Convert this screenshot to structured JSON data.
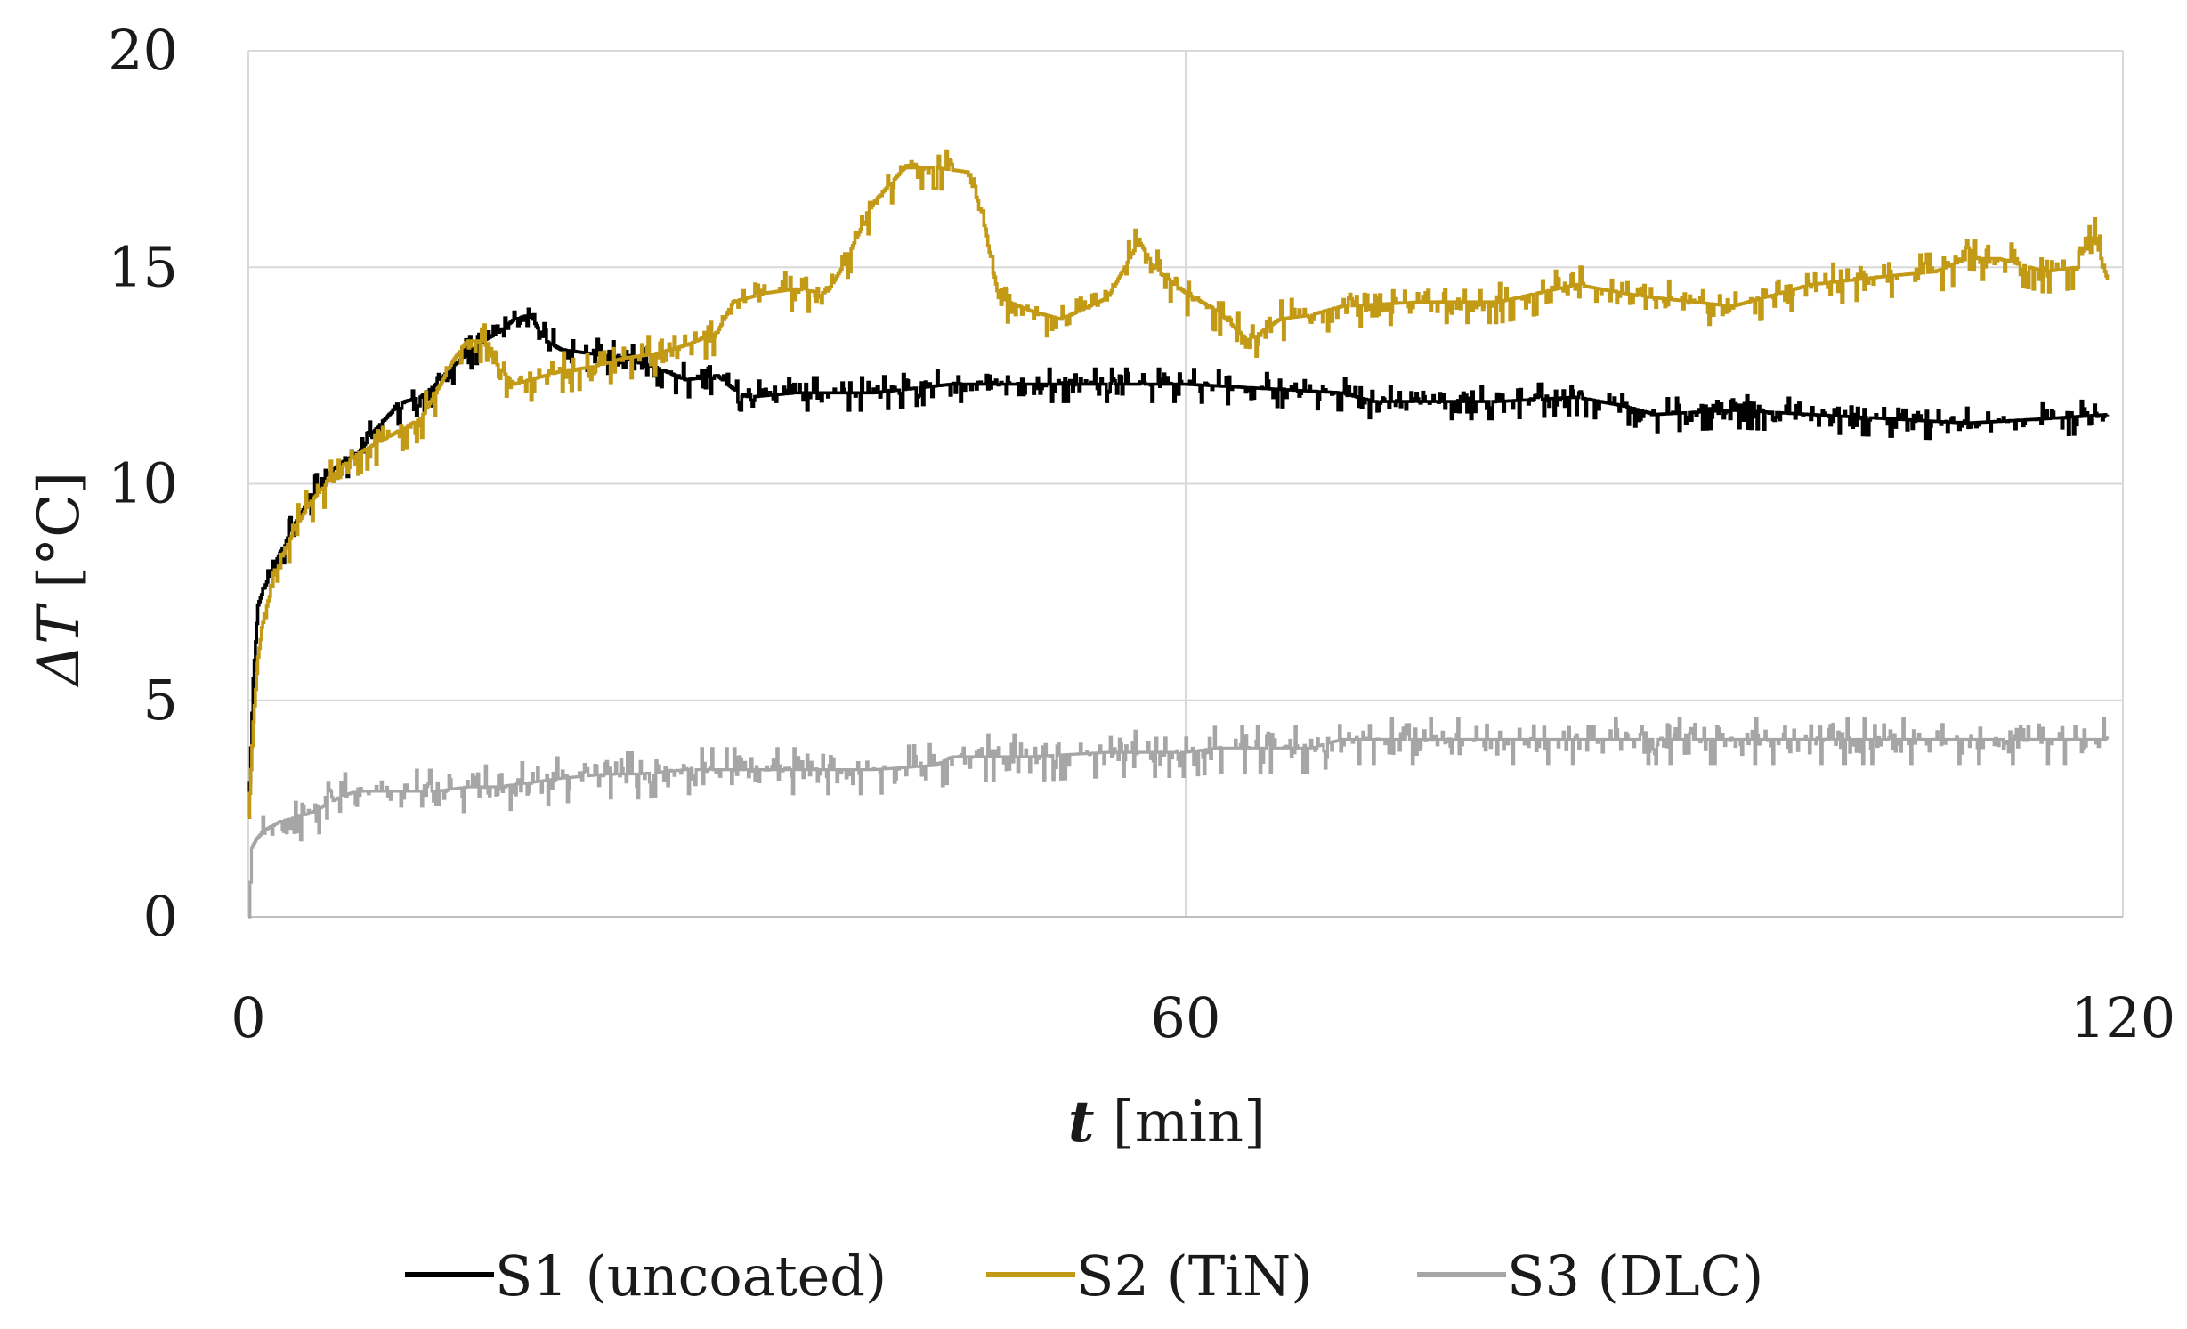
{
  "chart_data": {
    "type": "line",
    "xlabel": {
      "var": "t",
      "unit": " [min]"
    },
    "ylabel": {
      "var": "ΔT",
      "unit": " [°C]"
    },
    "xlim": [
      0,
      120
    ],
    "ylim": [
      0,
      20
    ],
    "xticks": [
      0,
      60,
      120
    ],
    "yticks": [
      0,
      5,
      10,
      15,
      20
    ],
    "grid": true,
    "legend_position": "bottom",
    "series": [
      {
        "name": "S1 (uncoated)",
        "color": "#000000",
        "x": [
          0,
          0.3,
          0.6,
          1,
          2,
          3,
          4,
          5,
          6,
          7,
          8,
          9,
          10,
          11,
          12,
          13,
          14,
          15,
          16,
          17,
          18,
          19,
          20,
          22,
          24,
          26,
          28,
          30,
          31,
          32,
          35,
          40,
          45,
          50,
          55,
          60,
          65,
          70,
          72,
          75,
          80,
          85,
          88,
          90,
          95,
          100,
          105,
          110,
          115,
          119
        ],
        "y": [
          2.3,
          5.5,
          7.2,
          7.6,
          8.4,
          9.1,
          9.7,
          10.2,
          10.5,
          10.7,
          11.2,
          11.6,
          11.9,
          12.0,
          12.3,
          12.7,
          13.0,
          13.3,
          13.5,
          13.8,
          13.9,
          13.3,
          13.1,
          13.0,
          12.9,
          12.7,
          12.4,
          12.5,
          12.2,
          12.0,
          12.1,
          12.1,
          12.3,
          12.3,
          12.3,
          12.3,
          12.2,
          12.1,
          11.9,
          11.9,
          11.9,
          12.0,
          11.8,
          11.6,
          11.7,
          11.6,
          11.5,
          11.4,
          11.5,
          11.6
        ],
        "noise": 0.25
      },
      {
        "name": "S2 (TiN)",
        "color": "#C29A16",
        "x": [
          0,
          0.3,
          0.6,
          1,
          2,
          3,
          4,
          5,
          6,
          7,
          8,
          9,
          10,
          11,
          12,
          13,
          14,
          15,
          16,
          17,
          18,
          19,
          20,
          22,
          24,
          26,
          28,
          30,
          31,
          33,
          35,
          37,
          38,
          40,
          42,
          44,
          46,
          47,
          48,
          50,
          52,
          55,
          57,
          58,
          60,
          62,
          64,
          66,
          68,
          70,
          75,
          80,
          85,
          88,
          90,
          95,
          100,
          105,
          108,
          110,
          112,
          115,
          117,
          118,
          119
        ],
        "y": [
          2.3,
          4.5,
          6.0,
          7.0,
          8.2,
          9.0,
          9.6,
          10.0,
          10.4,
          10.7,
          10.9,
          11.1,
          11.3,
          11.5,
          12.1,
          12.8,
          13.3,
          13.3,
          12.7,
          12.3,
          12.4,
          12.5,
          12.6,
          12.7,
          12.9,
          13.0,
          13.2,
          13.5,
          14.2,
          14.4,
          14.5,
          14.4,
          15.0,
          16.5,
          17.3,
          17.3,
          17.2,
          16.2,
          14.3,
          14.0,
          13.8,
          14.3,
          15.6,
          15.0,
          14.4,
          14.0,
          13.3,
          13.8,
          13.9,
          14.1,
          14.2,
          14.2,
          14.6,
          14.4,
          14.3,
          14.1,
          14.6,
          14.8,
          14.9,
          15.2,
          15.2,
          14.9,
          15.0,
          15.9,
          14.7
        ],
        "noise": 0.3
      },
      {
        "name": "S3 (DLC)",
        "color": "#A6A6A6",
        "x": [
          0,
          0.2,
          0.5,
          1,
          2,
          3,
          4,
          5,
          6,
          7,
          8,
          10,
          12,
          14,
          16,
          18,
          20,
          23,
          25,
          28,
          30,
          35,
          40,
          44,
          45,
          46,
          50,
          55,
          60,
          62,
          65,
          68,
          70,
          75,
          80,
          85,
          90,
          95,
          100,
          105,
          110,
          115,
          119
        ],
        "y": [
          0,
          1.6,
          1.8,
          2.0,
          2.2,
          2.3,
          2.4,
          2.6,
          2.8,
          2.9,
          2.9,
          2.9,
          2.9,
          3.0,
          3.0,
          3.1,
          3.2,
          3.3,
          3.3,
          3.4,
          3.4,
          3.4,
          3.4,
          3.5,
          3.7,
          3.7,
          3.7,
          3.8,
          3.8,
          3.9,
          3.9,
          3.9,
          4.1,
          4.1,
          4.1,
          4.1,
          4.1,
          4.1,
          4.1,
          4.1,
          4.1,
          4.1,
          4.1
        ],
        "noise": 0.35
      }
    ]
  }
}
